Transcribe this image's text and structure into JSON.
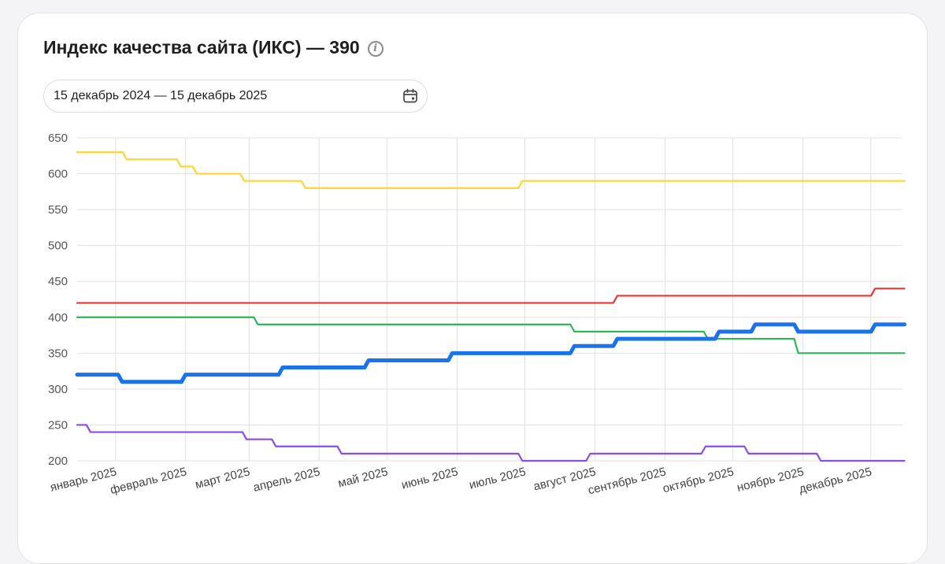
{
  "header": {
    "title": "Индекс качества сайта (ИКС) — 390",
    "info_icon": "info-icon"
  },
  "date_range": {
    "value": "15 декабрь 2024 — 15 декабрь 2025",
    "icon": "calendar-icon"
  },
  "chart_data": {
    "type": "line",
    "step": true,
    "ylim": [
      200,
      650
    ],
    "yticks": [
      200,
      250,
      300,
      350,
      400,
      450,
      500,
      550,
      600,
      650
    ],
    "xlim": [
      "2024-12-15",
      "2025-12-15"
    ],
    "xticks": [
      {
        "date": "2025-01-01",
        "label": "январь 2025"
      },
      {
        "date": "2025-02-01",
        "label": "февраль 2025"
      },
      {
        "date": "2025-03-01",
        "label": "март 2025"
      },
      {
        "date": "2025-04-01",
        "label": "апрель 2025"
      },
      {
        "date": "2025-05-01",
        "label": "май 2025"
      },
      {
        "date": "2025-06-01",
        "label": "июнь 2025"
      },
      {
        "date": "2025-07-01",
        "label": "июль 2025"
      },
      {
        "date": "2025-08-01",
        "label": "август 2025"
      },
      {
        "date": "2025-09-01",
        "label": "сентябрь 2025"
      },
      {
        "date": "2025-10-01",
        "label": "октябрь 2025"
      },
      {
        "date": "2025-11-01",
        "label": "ноябрь 2025"
      },
      {
        "date": "2025-12-01",
        "label": "декабрь 2025"
      }
    ],
    "grid": true,
    "series": [
      {
        "color": "#fcd535",
        "width": 2.2,
        "points": [
          [
            "2024-12-15",
            630
          ],
          [
            "2025-01-05",
            620
          ],
          [
            "2025-01-29",
            610
          ],
          [
            "2025-02-05",
            600
          ],
          [
            "2025-02-26",
            590
          ],
          [
            "2025-03-25",
            580
          ],
          [
            "2025-06-29",
            590
          ],
          [
            "2025-12-15",
            590
          ]
        ]
      },
      {
        "color": "#e53935",
        "width": 2.2,
        "points": [
          [
            "2024-12-15",
            420
          ],
          [
            "2025-08-10",
            430
          ],
          [
            "2025-12-02",
            440
          ],
          [
            "2025-12-15",
            440
          ]
        ]
      },
      {
        "color": "#2fb457",
        "width": 2.2,
        "points": [
          [
            "2024-12-15",
            400
          ],
          [
            "2025-03-04",
            390
          ],
          [
            "2025-07-22",
            380
          ],
          [
            "2025-09-19",
            370
          ],
          [
            "2025-10-29",
            350
          ],
          [
            "2025-12-15",
            350
          ]
        ]
      },
      {
        "color": "#1a73e8",
        "width": 5,
        "points": [
          [
            "2024-12-15",
            320
          ],
          [
            "2025-01-03",
            310
          ],
          [
            "2025-01-31",
            320
          ],
          [
            "2025-03-15",
            330
          ],
          [
            "2025-04-22",
            340
          ],
          [
            "2025-05-29",
            350
          ],
          [
            "2025-07-22",
            360
          ],
          [
            "2025-08-10",
            370
          ],
          [
            "2025-09-24",
            380
          ],
          [
            "2025-10-10",
            390
          ],
          [
            "2025-10-29",
            380
          ],
          [
            "2025-12-02",
            390
          ],
          [
            "2025-12-15",
            390
          ]
        ]
      },
      {
        "color": "#8a4de8",
        "width": 2.2,
        "points": [
          [
            "2024-12-15",
            250
          ],
          [
            "2024-12-20",
            240
          ],
          [
            "2025-02-27",
            230
          ],
          [
            "2025-03-12",
            220
          ],
          [
            "2025-04-10",
            210
          ],
          [
            "2025-06-29",
            200
          ],
          [
            "2025-07-29",
            210
          ],
          [
            "2025-09-18",
            220
          ],
          [
            "2025-10-07",
            210
          ],
          [
            "2025-11-08",
            200
          ],
          [
            "2025-12-15",
            200
          ]
        ]
      }
    ]
  }
}
